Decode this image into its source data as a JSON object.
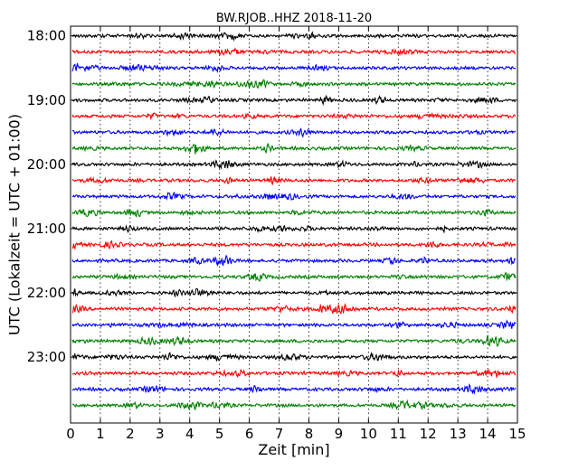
{
  "chart_data": {
    "type": "line",
    "title": "BW.RJOB..HHZ 2018-11-20",
    "xlabel": "Zeit  [min]",
    "ylabel": "UTC (Lokalzeit = UTC + 01:00)",
    "xlim": [
      0,
      15
    ],
    "x_ticks": [
      "0",
      "1",
      "2",
      "3",
      "4",
      "5",
      "6",
      "7",
      "8",
      "9",
      "10",
      "11",
      "12",
      "13",
      "14",
      "15"
    ],
    "y_ticks": [
      "18:00",
      "19:00",
      "20:00",
      "21:00",
      "22:00",
      "23:00"
    ],
    "grid": "vertical dotted lines at each minute",
    "trace_interval_minutes": 15,
    "colors": [
      "#000000",
      "#ff0000",
      "#0000ff",
      "#008000"
    ],
    "traces": [
      {
        "start": "18:00",
        "color": "#000000"
      },
      {
        "start": "18:15",
        "color": "#ff0000"
      },
      {
        "start": "18:30",
        "color": "#0000ff"
      },
      {
        "start": "18:45",
        "color": "#008000"
      },
      {
        "start": "19:00",
        "color": "#000000"
      },
      {
        "start": "19:15",
        "color": "#ff0000"
      },
      {
        "start": "19:30",
        "color": "#0000ff"
      },
      {
        "start": "19:45",
        "color": "#008000"
      },
      {
        "start": "20:00",
        "color": "#000000"
      },
      {
        "start": "20:15",
        "color": "#ff0000"
      },
      {
        "start": "20:30",
        "color": "#0000ff"
      },
      {
        "start": "20:45",
        "color": "#008000"
      },
      {
        "start": "21:00",
        "color": "#000000"
      },
      {
        "start": "21:15",
        "color": "#ff0000"
      },
      {
        "start": "21:30",
        "color": "#0000ff"
      },
      {
        "start": "21:45",
        "color": "#008000"
      },
      {
        "start": "22:00",
        "color": "#000000"
      },
      {
        "start": "22:15",
        "color": "#ff0000"
      },
      {
        "start": "22:30",
        "color": "#0000ff"
      },
      {
        "start": "22:45",
        "color": "#008000"
      },
      {
        "start": "23:00",
        "color": "#000000"
      },
      {
        "start": "23:15",
        "color": "#ff0000"
      },
      {
        "start": "23:30",
        "color": "#0000ff"
      },
      {
        "start": "23:45",
        "color": "#008000"
      }
    ]
  }
}
